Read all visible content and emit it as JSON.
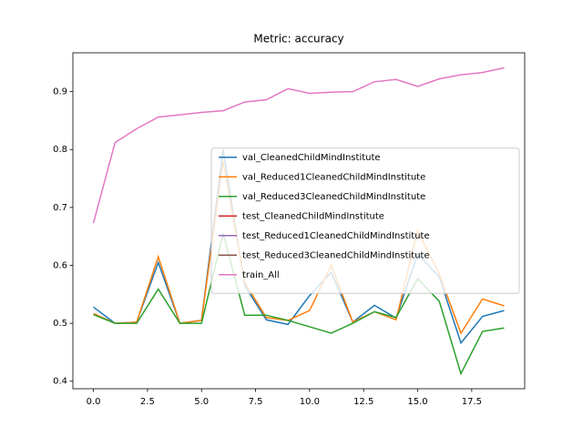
{
  "chart_data": {
    "type": "line",
    "title": "Metric: accuracy",
    "x": [
      0,
      1,
      2,
      3,
      4,
      5,
      6,
      7,
      8,
      9,
      10,
      11,
      12,
      13,
      14,
      15,
      16,
      17,
      18,
      19
    ],
    "series": [
      {
        "name": "val_CleanedChildMindInstitute",
        "color": "#1f77b4",
        "values": [
          0.528,
          0.5,
          0.502,
          0.605,
          0.5,
          0.505,
          0.8,
          0.565,
          0.506,
          0.498,
          0.548,
          0.588,
          0.502,
          0.531,
          0.509,
          0.62,
          0.58,
          0.466,
          0.512,
          0.522
        ]
      },
      {
        "name": "val_Reduced1CleanedChildMindInstitute",
        "color": "#ff7f0e",
        "values": [
          0.517,
          0.5,
          0.502,
          0.615,
          0.5,
          0.505,
          0.78,
          0.57,
          0.51,
          0.505,
          0.522,
          0.6,
          0.502,
          0.52,
          0.506,
          0.66,
          0.585,
          0.483,
          0.542,
          0.53
        ]
      },
      {
        "name": "val_Reduced3CleanedChildMindInstitute",
        "color": "#2ca02c",
        "values": [
          0.515,
          0.5,
          0.5,
          0.559,
          0.5,
          0.5,
          0.655,
          0.514,
          0.514,
          0.505,
          0.494,
          0.483,
          0.5,
          0.52,
          0.51,
          0.577,
          0.538,
          0.413,
          0.486,
          0.492
        ]
      },
      {
        "name": "test_CleanedChildMindInstitute",
        "color": "#d62728",
        "values": [
          null,
          null,
          null,
          null,
          null,
          null,
          null,
          null,
          null,
          null,
          null,
          null,
          null,
          null,
          null,
          null,
          null,
          null,
          null,
          null
        ]
      },
      {
        "name": "test_Reduced1CleanedChildMindInstitute",
        "color": "#9467bd",
        "values": [
          null,
          null,
          null,
          null,
          null,
          null,
          null,
          null,
          null,
          null,
          null,
          null,
          null,
          null,
          null,
          null,
          null,
          null,
          null,
          null
        ]
      },
      {
        "name": "test_Reduced3CleanedChildMindInstitute",
        "color": "#8c564b",
        "values": [
          null,
          null,
          null,
          null,
          null,
          null,
          null,
          null,
          null,
          null,
          null,
          null,
          null,
          null,
          null,
          null,
          null,
          null,
          null,
          null
        ]
      },
      {
        "name": "train_All",
        "color": "#e377c2",
        "values": [
          0.673,
          0.812,
          0.836,
          0.856,
          0.86,
          0.864,
          0.867,
          0.882,
          0.886,
          0.905,
          0.897,
          0.899,
          0.9,
          0.917,
          0.921,
          0.909,
          0.922,
          0.929,
          0.933,
          0.941
        ]
      }
    ],
    "xlim": [
      -0.95,
      19.95
    ],
    "xticks": [
      {
        "value": 0,
        "label": "0.0"
      },
      {
        "value": 2.5,
        "label": "2.5"
      },
      {
        "value": 5,
        "label": "5.0"
      },
      {
        "value": 7.5,
        "label": "7.5"
      },
      {
        "value": 10,
        "label": "10.0"
      },
      {
        "value": 12.5,
        "label": "12.5"
      },
      {
        "value": 15,
        "label": "15.0"
      },
      {
        "value": 17.5,
        "label": "17.5"
      }
    ],
    "ylim": [
      0.387,
      0.967
    ],
    "yticks": [
      0.4,
      0.5,
      0.6,
      0.7,
      0.8,
      0.9
    ],
    "legend": "center right"
  }
}
